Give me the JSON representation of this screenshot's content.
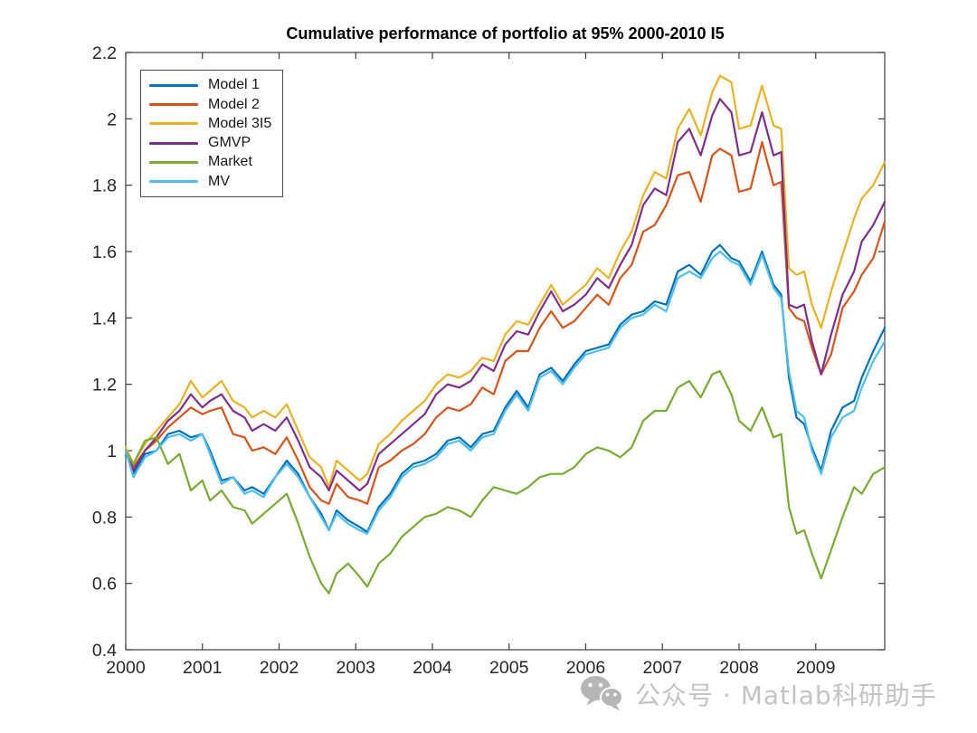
{
  "watermark": {
    "icon": "wechat-icon",
    "text": "公众号 · Matlab科研助手",
    "color": "#c3c3c3"
  },
  "chart_data": {
    "type": "line",
    "title": "Cumulative performance of portfolio at 95% 2000-2010 I5",
    "xlabel": "",
    "ylabel": "",
    "xlim": [
      2000,
      2009.9
    ],
    "ylim": [
      0.4,
      2.2
    ],
    "x_ticks": [
      2000,
      2001,
      2002,
      2003,
      2004,
      2005,
      2006,
      2007,
      2008,
      2009
    ],
    "y_ticks": [
      0.4,
      0.6,
      0.8,
      1,
      1.2,
      1.4,
      1.6,
      1.8,
      2,
      2.2
    ],
    "grid": false,
    "legend_position": "top-left",
    "axis_color": "#3c3c3c",
    "tick_label_color": "#262626",
    "x": [
      2000.0,
      2000.1,
      2000.25,
      2000.4,
      2000.55,
      2000.7,
      2000.85,
      2001.0,
      2001.1,
      2001.25,
      2001.4,
      2001.55,
      2001.65,
      2001.8,
      2001.95,
      2002.1,
      2002.25,
      2002.4,
      2002.55,
      2002.65,
      2002.75,
      2002.9,
      2003.05,
      2003.15,
      2003.3,
      2003.45,
      2003.6,
      2003.75,
      2003.9,
      2004.05,
      2004.2,
      2004.35,
      2004.5,
      2004.65,
      2004.8,
      2004.95,
      2005.1,
      2005.25,
      2005.4,
      2005.55,
      2005.7,
      2005.85,
      2006.0,
      2006.15,
      2006.3,
      2006.45,
      2006.6,
      2006.75,
      2006.9,
      2007.05,
      2007.2,
      2007.35,
      2007.5,
      2007.65,
      2007.75,
      2007.9,
      2008.0,
      2008.15,
      2008.3,
      2008.45,
      2008.55,
      2008.65,
      2008.75,
      2008.85,
      2008.95,
      2009.07,
      2009.2,
      2009.35,
      2009.5,
      2009.6,
      2009.75,
      2009.9
    ],
    "series": [
      {
        "name": "Model 1",
        "color": "#0072BD",
        "values": [
          1.0,
          0.93,
          0.99,
          1.0,
          1.05,
          1.06,
          1.04,
          1.05,
          1.0,
          0.91,
          0.92,
          0.88,
          0.89,
          0.87,
          0.92,
          0.97,
          0.93,
          0.86,
          0.81,
          0.76,
          0.82,
          0.79,
          0.77,
          0.755,
          0.83,
          0.87,
          0.93,
          0.96,
          0.97,
          0.99,
          1.03,
          1.04,
          1.01,
          1.05,
          1.06,
          1.13,
          1.18,
          1.13,
          1.23,
          1.25,
          1.21,
          1.26,
          1.3,
          1.31,
          1.32,
          1.38,
          1.41,
          1.42,
          1.45,
          1.44,
          1.54,
          1.56,
          1.53,
          1.6,
          1.62,
          1.58,
          1.57,
          1.51,
          1.6,
          1.5,
          1.47,
          1.22,
          1.1,
          1.08,
          1.01,
          0.94,
          1.06,
          1.13,
          1.15,
          1.22,
          1.3,
          1.37
        ]
      },
      {
        "name": "Model 2",
        "color": "#D95319",
        "values": [
          1.0,
          0.95,
          1.0,
          1.03,
          1.07,
          1.1,
          1.13,
          1.11,
          1.12,
          1.13,
          1.05,
          1.04,
          1.0,
          1.01,
          0.99,
          1.04,
          0.97,
          0.89,
          0.85,
          0.84,
          0.9,
          0.86,
          0.85,
          0.84,
          0.95,
          0.97,
          1.0,
          1.02,
          1.05,
          1.1,
          1.13,
          1.12,
          1.14,
          1.19,
          1.17,
          1.27,
          1.3,
          1.3,
          1.37,
          1.42,
          1.37,
          1.39,
          1.43,
          1.47,
          1.44,
          1.52,
          1.56,
          1.66,
          1.68,
          1.74,
          1.83,
          1.84,
          1.75,
          1.89,
          1.91,
          1.89,
          1.78,
          1.79,
          1.93,
          1.8,
          1.81,
          1.43,
          1.4,
          1.39,
          1.31,
          1.23,
          1.29,
          1.43,
          1.48,
          1.53,
          1.58,
          1.69
        ]
      },
      {
        "name": "Model 3I5",
        "color": "#EDB120",
        "values": [
          1.01,
          0.96,
          1.02,
          1.06,
          1.1,
          1.14,
          1.21,
          1.16,
          1.18,
          1.21,
          1.15,
          1.13,
          1.1,
          1.12,
          1.1,
          1.14,
          1.06,
          0.98,
          0.95,
          0.89,
          0.97,
          0.94,
          0.91,
          0.93,
          1.02,
          1.05,
          1.09,
          1.12,
          1.15,
          1.2,
          1.23,
          1.22,
          1.24,
          1.28,
          1.27,
          1.35,
          1.39,
          1.38,
          1.44,
          1.5,
          1.44,
          1.47,
          1.5,
          1.55,
          1.52,
          1.6,
          1.66,
          1.77,
          1.84,
          1.82,
          1.97,
          2.03,
          1.95,
          2.08,
          2.13,
          2.11,
          1.97,
          1.98,
          2.1,
          1.98,
          1.97,
          1.55,
          1.53,
          1.54,
          1.44,
          1.37,
          1.48,
          1.59,
          1.7,
          1.76,
          1.8,
          1.87
        ]
      },
      {
        "name": "GMVP",
        "color": "#7E2F8E",
        "values": [
          1.0,
          0.94,
          1.0,
          1.04,
          1.09,
          1.12,
          1.17,
          1.13,
          1.15,
          1.17,
          1.12,
          1.1,
          1.06,
          1.08,
          1.06,
          1.1,
          1.03,
          0.95,
          0.92,
          0.88,
          0.94,
          0.91,
          0.88,
          0.9,
          0.99,
          1.02,
          1.05,
          1.08,
          1.11,
          1.17,
          1.2,
          1.19,
          1.21,
          1.26,
          1.24,
          1.32,
          1.36,
          1.35,
          1.42,
          1.48,
          1.42,
          1.44,
          1.47,
          1.52,
          1.49,
          1.56,
          1.62,
          1.74,
          1.79,
          1.77,
          1.93,
          1.97,
          1.89,
          2.01,
          2.06,
          2.02,
          1.89,
          1.9,
          2.02,
          1.89,
          1.9,
          1.44,
          1.43,
          1.44,
          1.33,
          1.23,
          1.35,
          1.47,
          1.54,
          1.63,
          1.68,
          1.75
        ]
      },
      {
        "name": "Market",
        "color": "#77AC30",
        "values": [
          1.0,
          0.96,
          1.03,
          1.04,
          0.96,
          0.99,
          0.88,
          0.91,
          0.85,
          0.88,
          0.83,
          0.82,
          0.78,
          0.81,
          0.84,
          0.87,
          0.78,
          0.68,
          0.6,
          0.57,
          0.63,
          0.66,
          0.62,
          0.59,
          0.66,
          0.69,
          0.74,
          0.77,
          0.8,
          0.81,
          0.83,
          0.82,
          0.8,
          0.85,
          0.89,
          0.88,
          0.87,
          0.89,
          0.92,
          0.93,
          0.93,
          0.95,
          0.99,
          1.01,
          1.0,
          0.98,
          1.01,
          1.09,
          1.12,
          1.12,
          1.19,
          1.21,
          1.16,
          1.23,
          1.24,
          1.17,
          1.09,
          1.06,
          1.13,
          1.04,
          1.05,
          0.83,
          0.75,
          0.76,
          0.69,
          0.615,
          0.7,
          0.8,
          0.89,
          0.87,
          0.93,
          0.95
        ]
      },
      {
        "name": "MV",
        "color": "#4DBEEE",
        "values": [
          1.0,
          0.92,
          0.98,
          1.0,
          1.04,
          1.05,
          1.03,
          1.05,
          0.99,
          0.9,
          0.92,
          0.87,
          0.88,
          0.86,
          0.92,
          0.96,
          0.92,
          0.86,
          0.8,
          0.76,
          0.81,
          0.78,
          0.76,
          0.75,
          0.82,
          0.86,
          0.92,
          0.95,
          0.96,
          0.98,
          1.02,
          1.03,
          1.0,
          1.04,
          1.05,
          1.12,
          1.17,
          1.12,
          1.22,
          1.24,
          1.2,
          1.25,
          1.29,
          1.3,
          1.31,
          1.37,
          1.4,
          1.41,
          1.44,
          1.42,
          1.52,
          1.54,
          1.52,
          1.58,
          1.6,
          1.57,
          1.56,
          1.5,
          1.59,
          1.49,
          1.46,
          1.24,
          1.12,
          1.1,
          1.0,
          0.93,
          1.04,
          1.1,
          1.12,
          1.19,
          1.27,
          1.33
        ]
      }
    ]
  }
}
